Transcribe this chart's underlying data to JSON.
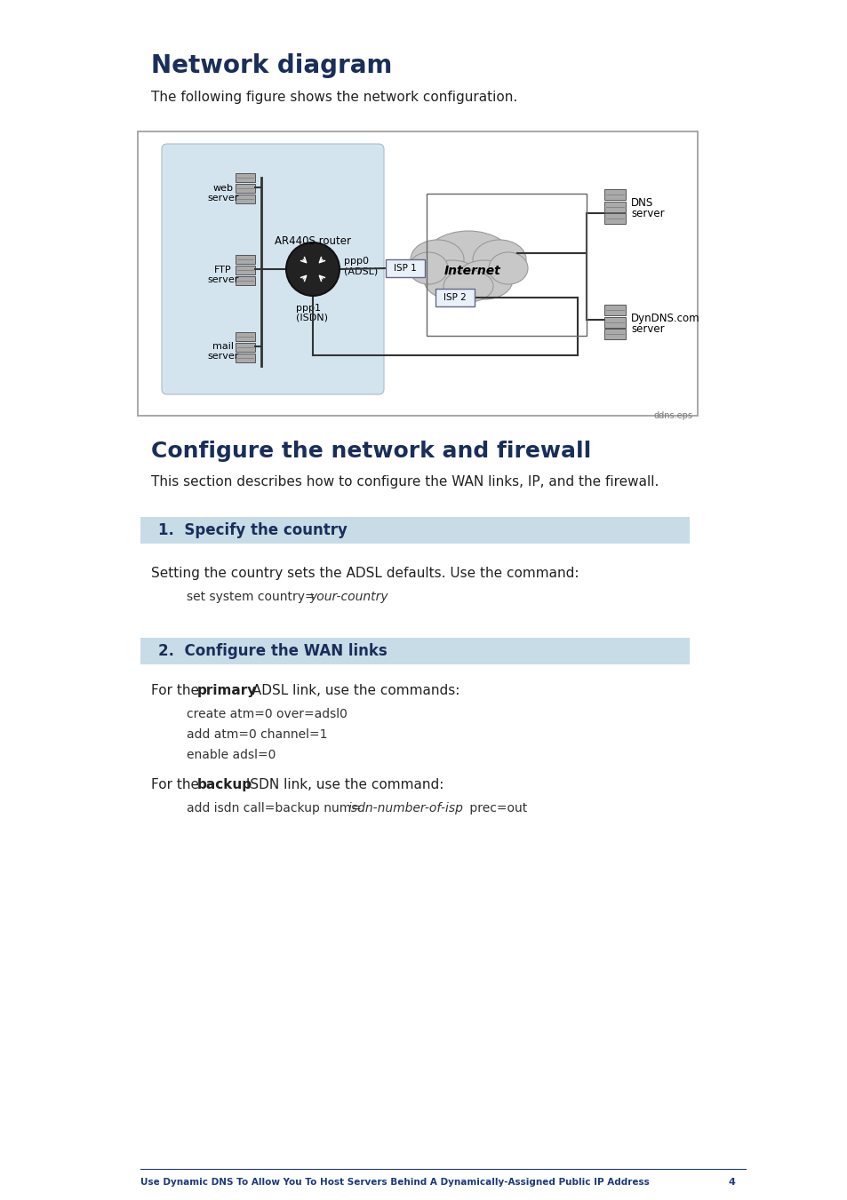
{
  "title": "Network diagram",
  "subtitle": "The following figure shows the network configuration.",
  "section2_title": "Configure the network and firewall",
  "section2_subtitle": "This section describes how to configure the WAN links, IP, and the firewall.",
  "step1_title": "1.  Specify the country",
  "step1_body": "Setting the country sets the ADSL defaults. Use the command:",
  "step2_title": "2.  Configure the WAN links",
  "step2_body_primary_pre": "For the ",
  "step2_body_primary_bold": "primary",
  "step2_body_primary_post": " ADSL link, use the commands:",
  "step2_code1": "create atm=0 over=adsl0",
  "step2_code2": "add atm=0 channel=1",
  "step2_code3": "enable adsl=0",
  "step2_body_backup_pre": "For the ",
  "step2_body_backup_bold": "backup",
  "step2_body_backup_post": " ISDN link, use the command:",
  "step2_code4_pre": "add isdn call=backup num=",
  "step2_code4_italic": "isdn-number-of-isp",
  "step2_code4_post": " prec=out",
  "step1_code_pre": "set system country=",
  "step1_code_italic": "your-country",
  "footer_text": "Use Dynamic DNS To Allow You To Host Servers Behind A Dynamically-Assigned Public IP Address",
  "footer_page": "4",
  "title_color": "#1a2e5a",
  "section2_title_color": "#1a2e5a",
  "step_bar_color": "#c8dce8",
  "step_title_color": "#1a2e5a",
  "footer_color": "#1a3a7a",
  "background_color": "#ffffff",
  "diagram_border_color": "#888888",
  "lan_bg": "#d3e4ef"
}
